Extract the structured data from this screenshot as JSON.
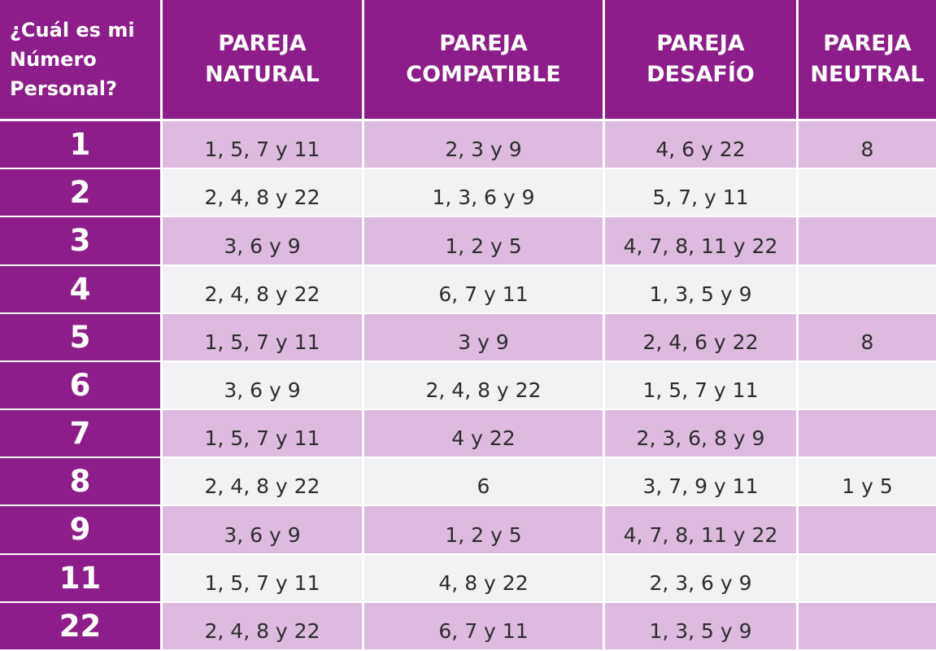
{
  "colors": {
    "header_purple": "#8d1d8a",
    "row_light_purple": "#dcbbde",
    "row_light_gray": "#f2f2f4",
    "text_white": "#ffffff",
    "text_dark": "#2d2d2d"
  },
  "headers": {
    "personal_number": "¿Cuál es mi\nNúmero\nPersonal?",
    "natural": "PAREJA\nNATURAL",
    "compatible": "PAREJA\nCOMPATIBLE",
    "challenge": "PAREJA\nDESAFÍO",
    "neutral": "PAREJA\nNEUTRAL"
  },
  "rows": [
    {
      "number": "1",
      "natural": "1, 5, 7 y 11",
      "compatible": "2, 3 y 9",
      "challenge": "4, 6 y 22",
      "neutral": "8"
    },
    {
      "number": "2",
      "natural": "2, 4, 8 y 22",
      "compatible": "1, 3, 6 y 9",
      "challenge": "5, 7, y 11",
      "neutral": ""
    },
    {
      "number": "3",
      "natural": "3, 6 y 9",
      "compatible": "1, 2 y 5",
      "challenge": "4, 7, 8, 11 y 22",
      "neutral": ""
    },
    {
      "number": "4",
      "natural": "2, 4, 8 y 22",
      "compatible": "6, 7 y 11",
      "challenge": "1, 3, 5 y 9",
      "neutral": ""
    },
    {
      "number": "5",
      "natural": "1, 5, 7 y 11",
      "compatible": "3 y 9",
      "challenge": "2, 4, 6 y 22",
      "neutral": "8"
    },
    {
      "number": "6",
      "natural": "3, 6 y 9",
      "compatible": "2, 4, 8 y 22",
      "challenge": "1, 5, 7 y 11",
      "neutral": ""
    },
    {
      "number": "7",
      "natural": "1, 5, 7 y 11",
      "compatible": "4 y 22",
      "challenge": "2, 3, 6, 8 y 9",
      "neutral": ""
    },
    {
      "number": "8",
      "natural": "2, 4, 8 y 22",
      "compatible": "6",
      "challenge": "3, 7, 9 y 11",
      "neutral": "1 y 5"
    },
    {
      "number": "9",
      "natural": "3, 6 y 9",
      "compatible": "1, 2 y 5",
      "challenge": "4, 7, 8, 11 y 22",
      "neutral": ""
    },
    {
      "number": "11",
      "natural": "1, 5, 7 y 11",
      "compatible": "4, 8 y 22",
      "challenge": "2, 3, 6 y 9",
      "neutral": ""
    },
    {
      "number": "22",
      "natural": "2, 4, 8 y 22",
      "compatible": "6, 7 y 11",
      "challenge": "1, 3, 5 y 9",
      "neutral": ""
    }
  ]
}
